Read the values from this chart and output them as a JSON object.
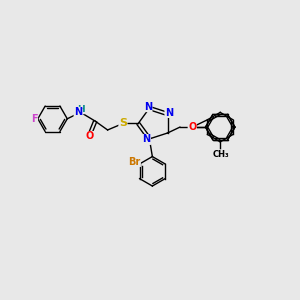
{
  "bg_color": "#e8e8e8",
  "bond_color": "#000000",
  "atom_colors": {
    "N": "#0000ee",
    "O": "#ff0000",
    "S": "#ccaa00",
    "F": "#cc44cc",
    "Br": "#cc7700",
    "H": "#008888",
    "C": "#000000"
  },
  "font_size": 7.0,
  "fig_size": [
    3.0,
    3.0
  ],
  "dpi": 100
}
